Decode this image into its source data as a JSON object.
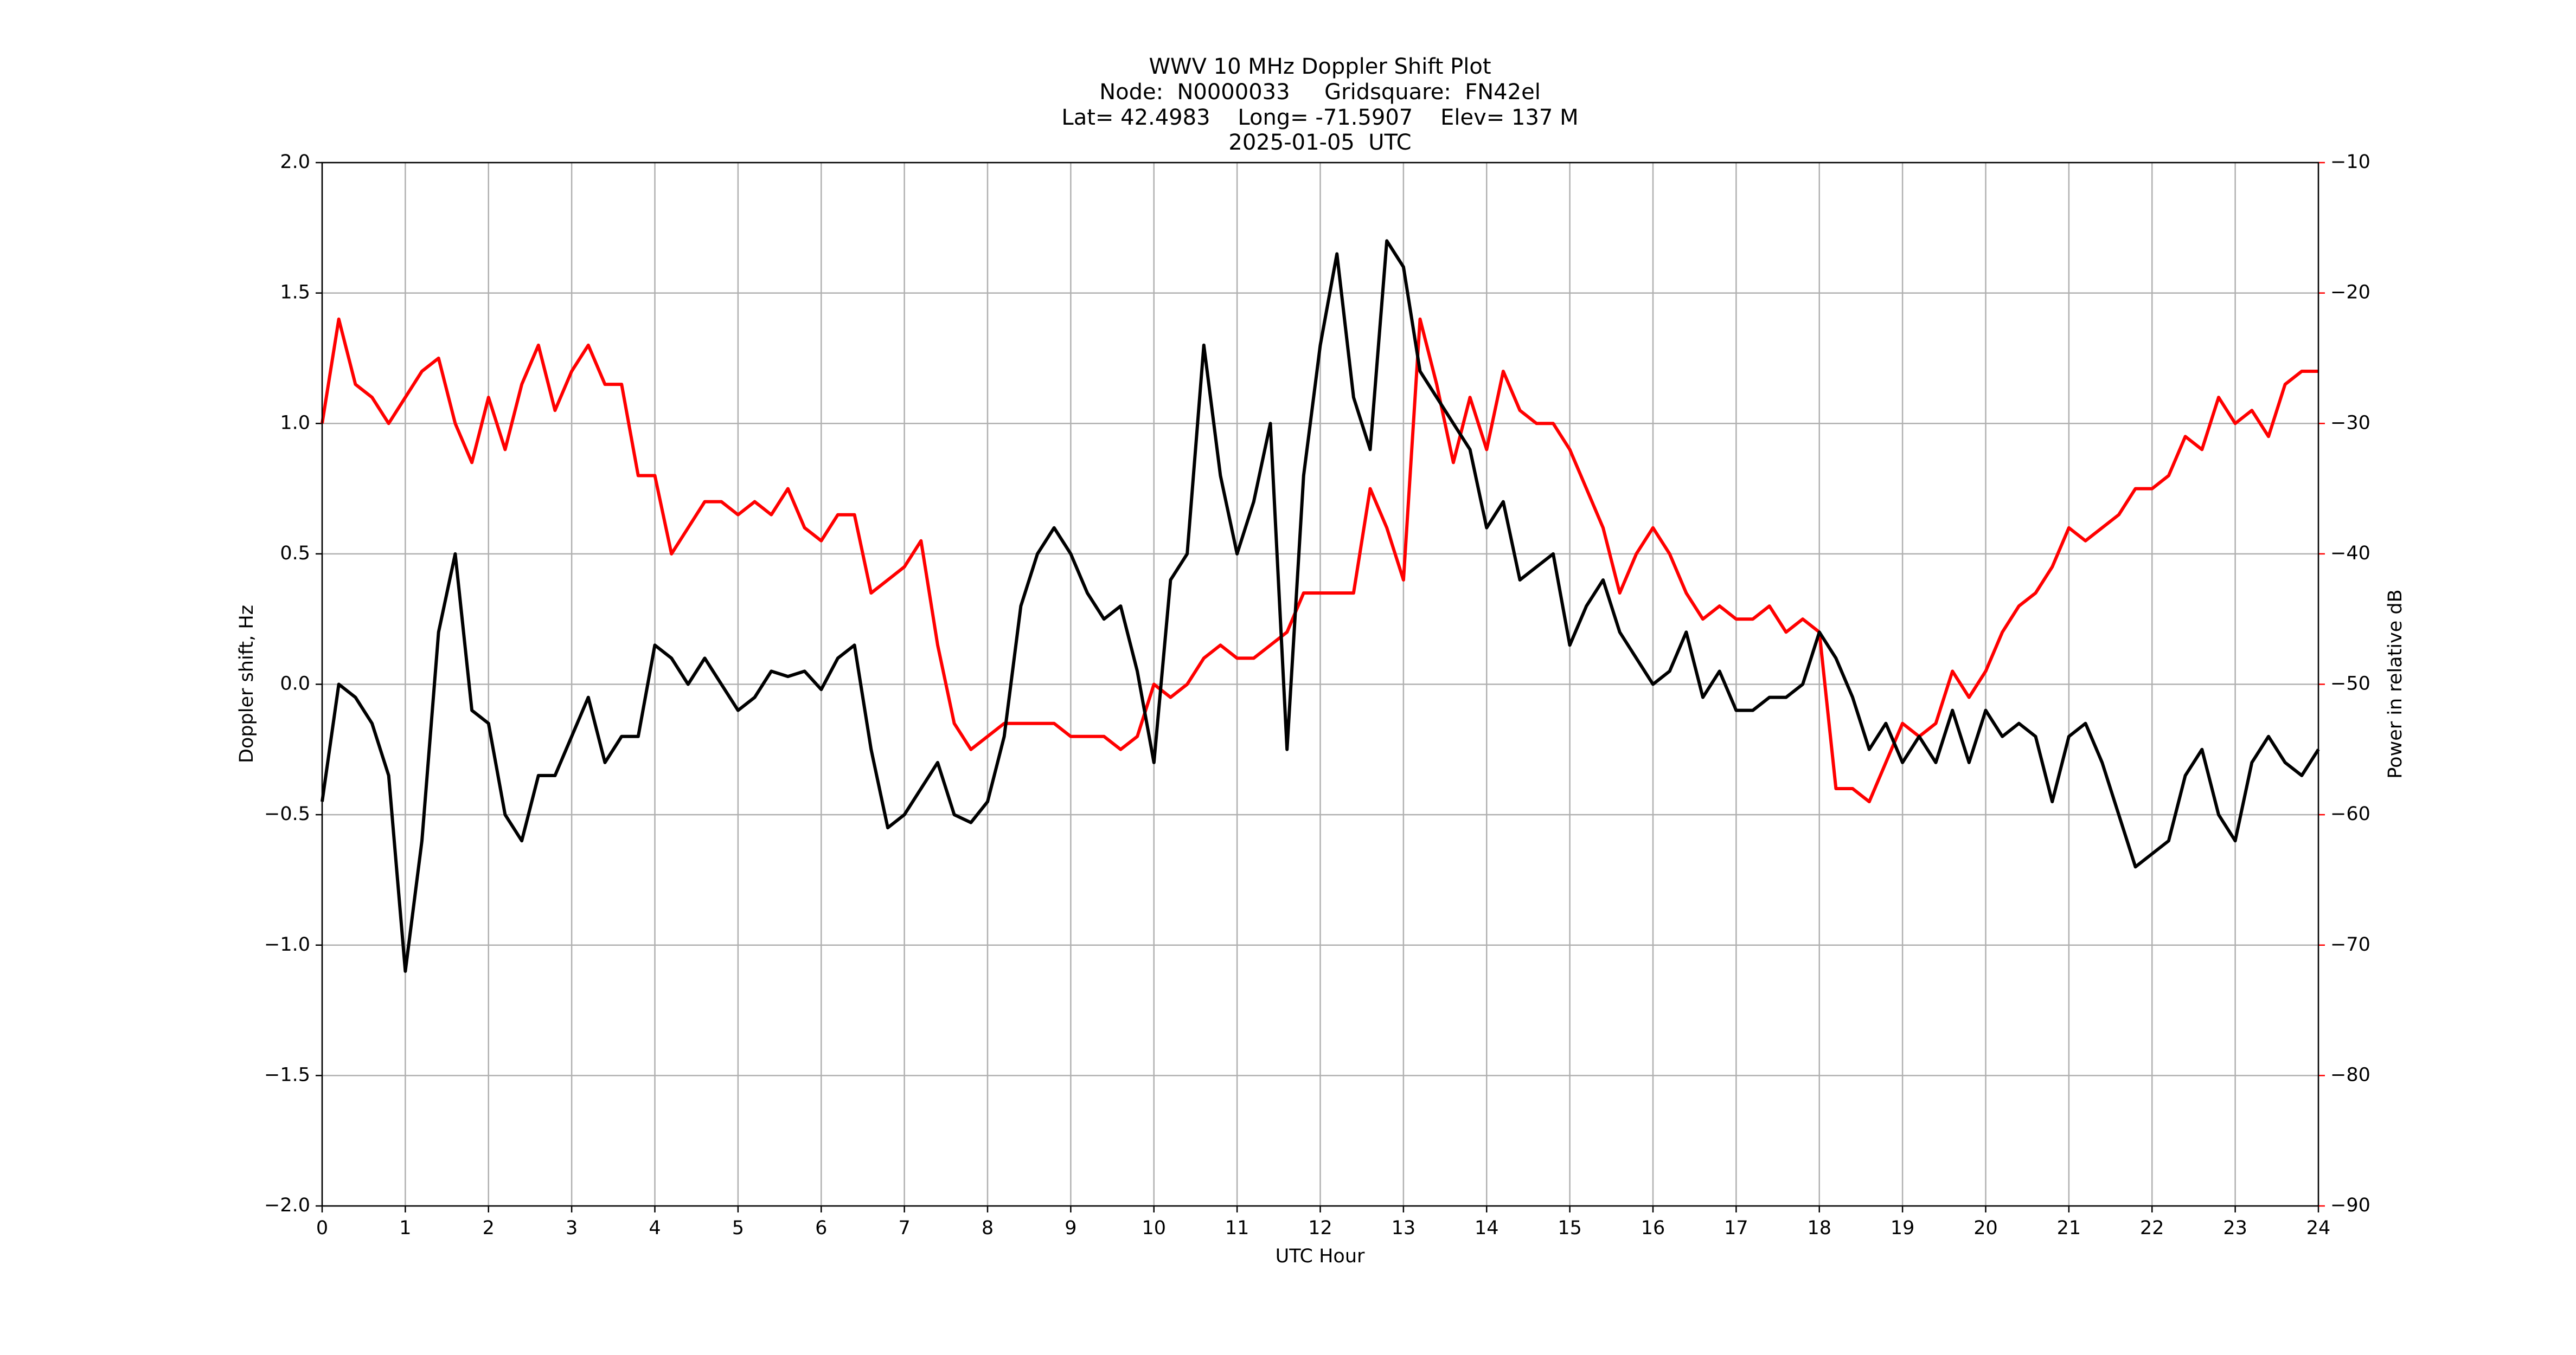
{
  "chart_data": {
    "type": "line",
    "title": [
      "WWV 10 MHz Doppler Shift Plot",
      "Node:  N0000033     Gridsquare:  FN42el",
      "Lat= 42.4983    Long= -71.5907    Elev= 137 M",
      "2025-01-05  UTC"
    ],
    "xlabel": "UTC Hour",
    "ylabel": "Doppler shift, Hz",
    "y2label": "Power in relative dB",
    "grid": true,
    "xlim": [
      0,
      24
    ],
    "xticks": [
      0,
      1,
      2,
      3,
      4,
      5,
      6,
      7,
      8,
      9,
      10,
      11,
      12,
      13,
      14,
      15,
      16,
      17,
      18,
      19,
      20,
      21,
      22,
      23,
      24
    ],
    "ylim": [
      -2,
      2
    ],
    "yticks": [
      {
        "value": -2,
        "label": "−2.0"
      },
      {
        "value": -1.5,
        "label": "−1.5"
      },
      {
        "value": -1,
        "label": "−1.0"
      },
      {
        "value": -0.5,
        "label": "−0.5"
      },
      {
        "value": 0,
        "label": "0.0"
      },
      {
        "value": 0.5,
        "label": "0.5"
      },
      {
        "value": 1,
        "label": "1.0"
      },
      {
        "value": 1.5,
        "label": "1.5"
      },
      {
        "value": 2,
        "label": "2.0"
      }
    ],
    "y2lim": [
      -90,
      -10
    ],
    "y2ticks": [
      {
        "value": -90,
        "label": "−90"
      },
      {
        "value": -80,
        "label": "−80"
      },
      {
        "value": -70,
        "label": "−70"
      },
      {
        "value": -60,
        "label": "−60"
      },
      {
        "value": -50,
        "label": "−50"
      },
      {
        "value": -40,
        "label": "−40"
      },
      {
        "value": -30,
        "label": "−30"
      },
      {
        "value": -20,
        "label": "−20"
      },
      {
        "value": -10,
        "label": "−10"
      }
    ],
    "y2color": "#ff0000",
    "x": [
      0,
      0.2,
      0.4,
      0.6,
      0.8,
      1,
      1.2,
      1.4,
      1.6,
      1.8,
      2,
      2.2,
      2.4,
      2.6,
      2.8,
      3,
      3.2,
      3.4,
      3.6,
      3.8,
      4,
      4.2,
      4.4,
      4.6,
      4.8,
      5,
      5.2,
      5.4,
      5.6,
      5.8,
      6,
      6.2,
      6.4,
      6.6,
      6.8,
      7,
      7.2,
      7.4,
      7.6,
      7.8,
      8,
      8.2,
      8.4,
      8.6,
      8.8,
      9,
      9.2,
      9.4,
      9.6,
      9.8,
      10,
      10.2,
      10.4,
      10.6,
      10.8,
      11,
      11.2,
      11.4,
      11.6,
      11.8,
      12,
      12.2,
      12.4,
      12.6,
      12.8,
      13,
      13.2,
      13.4,
      13.6,
      13.8,
      14,
      14.2,
      14.4,
      14.6,
      14.8,
      15,
      15.2,
      15.4,
      15.6,
      15.8,
      16,
      16.2,
      16.4,
      16.6,
      16.8,
      17,
      17.2,
      17.4,
      17.6,
      17.8,
      18,
      18.2,
      18.4,
      18.6,
      18.8,
      19,
      19.2,
      19.4,
      19.6,
      19.8,
      20,
      20.2,
      20.4,
      20.6,
      20.8,
      21,
      21.2,
      21.4,
      21.6,
      21.8,
      22,
      22.2,
      22.4,
      22.6,
      22.8,
      23,
      23.2,
      23.4,
      23.6,
      23.8,
      24
    ],
    "series": [
      {
        "name": "Doppler shift",
        "color": "#000000",
        "values": [
          -0.45,
          0,
          -0.05,
          -0.15,
          -0.35,
          -1.1,
          -0.6,
          0.2,
          0.5,
          -0.1,
          -0.15,
          -0.5,
          -0.6,
          -0.35,
          -0.35,
          -0.2,
          -0.05,
          -0.3,
          -0.2,
          -0.2,
          0.15,
          0.1,
          0,
          0.1,
          0,
          -0.1,
          -0.05,
          0.05,
          0.03,
          0.05,
          -0.02,
          0.1,
          0.15,
          -0.25,
          -0.55,
          -0.5,
          -0.4,
          -0.3,
          -0.5,
          -0.53,
          -0.45,
          -0.2,
          0.3,
          0.5,
          0.6,
          0.5,
          0.35,
          0.25,
          0.3,
          0.05,
          -0.3,
          0.4,
          0.5,
          1.3,
          0.8,
          0.5,
          0.7,
          1,
          -0.25,
          0.8,
          1.3,
          1.65,
          1.1,
          0.9,
          1.7,
          1.6,
          1.2,
          1.1,
          1,
          0.9,
          0.6,
          0.7,
          0.4,
          0.45,
          0.5,
          0.15,
          0.3,
          0.4,
          0.2,
          0.1,
          0,
          0.05,
          0.2,
          -0.05,
          0.05,
          -0.1,
          -0.1,
          -0.05,
          -0.05,
          0,
          0.2,
          0.1,
          -0.05,
          -0.25,
          -0.15,
          -0.3,
          -0.2,
          -0.3,
          -0.1,
          -0.3,
          -0.1,
          -0.2,
          -0.15,
          -0.2,
          -0.45,
          -0.2,
          -0.15,
          -0.3,
          -0.5,
          -0.7,
          -0.65,
          -0.6,
          -0.35,
          -0.25,
          -0.5,
          -0.6,
          -0.3,
          -0.2,
          -0.3,
          -0.35,
          -0.25
        ]
      },
      {
        "name": "Power",
        "color": "#ff0000",
        "axis": "y2",
        "values": [
          -30,
          -22,
          -27,
          -28,
          -30,
          -28,
          -26,
          -25,
          -30,
          -33,
          -28,
          -32,
          -27,
          -24,
          -29,
          -26,
          -24,
          -27,
          -27,
          -34,
          -34,
          -40,
          -38,
          -36,
          -36,
          -37,
          -36,
          -37,
          -35,
          -38,
          -39,
          -37,
          -37,
          -43,
          -42,
          -41,
          -39,
          -47,
          -53,
          -55,
          -54,
          -53,
          -53,
          -53,
          -53,
          -54,
          -54,
          -54,
          -55,
          -54,
          -50,
          -51,
          -50,
          -48,
          -47,
          -48,
          -48,
          -47,
          -46,
          -43,
          -43,
          -43,
          -43,
          -35,
          -38,
          -42,
          -22,
          -27,
          -33,
          -28,
          -32,
          -26,
          -29,
          -30,
          -30,
          -32,
          -35,
          -38,
          -43,
          -40,
          -38,
          -40,
          -43,
          -45,
          -44,
          -45,
          -45,
          -44,
          -46,
          -45,
          -46,
          -58,
          -58,
          -59,
          -56,
          -53,
          -54,
          -53,
          -49,
          -51,
          -49,
          -46,
          -44,
          -43,
          -41,
          -38,
          -39,
          -38,
          -37,
          -35,
          -35,
          -34,
          -31,
          -32,
          -28,
          -30,
          -29,
          -31,
          -27,
          -26,
          -26
        ]
      }
    ]
  }
}
